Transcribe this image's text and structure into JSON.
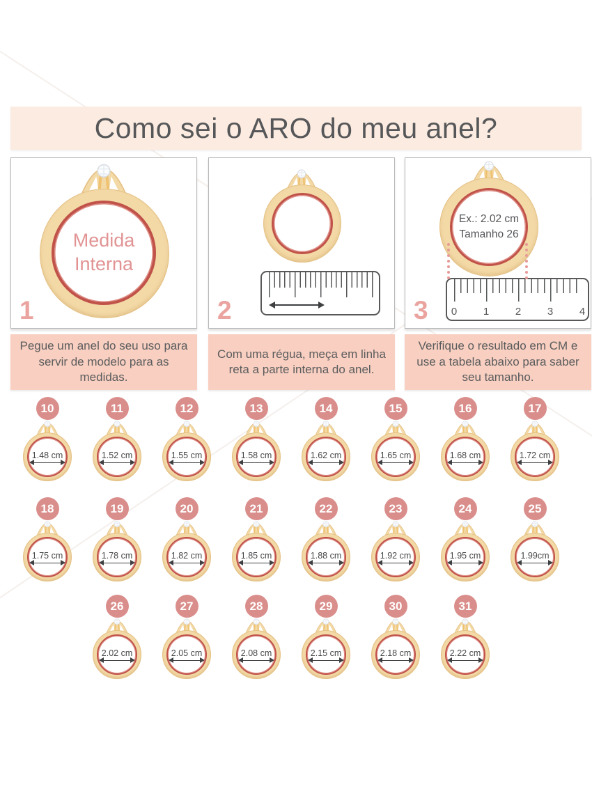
{
  "title": "Como sei o ARO do meu anel?",
  "steps": [
    {
      "number": "1",
      "ring_text_1": "Medida",
      "ring_text_2": "Interna",
      "caption": "Pegue um anel do seu uso para servir de modelo para as medidas."
    },
    {
      "number": "2",
      "caption": "Com uma régua, meça em linha reta a parte interna do anel."
    },
    {
      "number": "3",
      "ring_text_1": "Ex.: 2.02 cm",
      "ring_text_2": "Tamanho 26",
      "ruler_numbers": [
        "0",
        "1",
        "2",
        "3",
        "4"
      ],
      "caption": "Verifique o resultado em CM e use a tabela abaixo para saber seu tamanho."
    }
  ],
  "size_chart": {
    "rows": [
      {
        "items": [
          {
            "size": "10",
            "measure": "1.48 cm"
          },
          {
            "size": "11",
            "measure": "1.52 cm"
          },
          {
            "size": "12",
            "measure": "1.55 cm"
          },
          {
            "size": "13",
            "measure": "1.58 cm"
          },
          {
            "size": "14",
            "measure": "1.62 cm"
          },
          {
            "size": "15",
            "measure": "1.65 cm"
          },
          {
            "size": "16",
            "measure": "1.68 cm"
          },
          {
            "size": "17",
            "measure": "1.72 cm"
          }
        ]
      },
      {
        "items": [
          {
            "size": "18",
            "measure": "1.75 cm"
          },
          {
            "size": "19",
            "measure": "1.78 cm"
          },
          {
            "size": "20",
            "measure": "1.82 cm"
          },
          {
            "size": "21",
            "measure": "1.85 cm"
          },
          {
            "size": "22",
            "measure": "1.88 cm"
          },
          {
            "size": "23",
            "measure": "1.92 cm"
          },
          {
            "size": "24",
            "measure": "1.95 cm"
          },
          {
            "size": "25",
            "measure": "1.99cm"
          }
        ]
      },
      {
        "items": [
          {
            "size": "26",
            "measure": "2.02 cm"
          },
          {
            "size": "27",
            "measure": "2.05 cm"
          },
          {
            "size": "28",
            "measure": "2.08 cm"
          },
          {
            "size": "29",
            "measure": "2.15 cm"
          },
          {
            "size": "30",
            "measure": "2.18 cm"
          },
          {
            "size": "31",
            "measure": "2.22 cm"
          }
        ]
      }
    ]
  },
  "colors": {
    "banner_bg": "#fcebe0",
    "caption_bg": "#f8cfc0",
    "badge_bg": "#da8e8b",
    "step_number": "#eaa39f",
    "ring_band_gold": "#f3d9a6",
    "ring_inner_red": "#c0524a",
    "accent_pink_text": "#e29394",
    "body_text": "#58585a"
  }
}
